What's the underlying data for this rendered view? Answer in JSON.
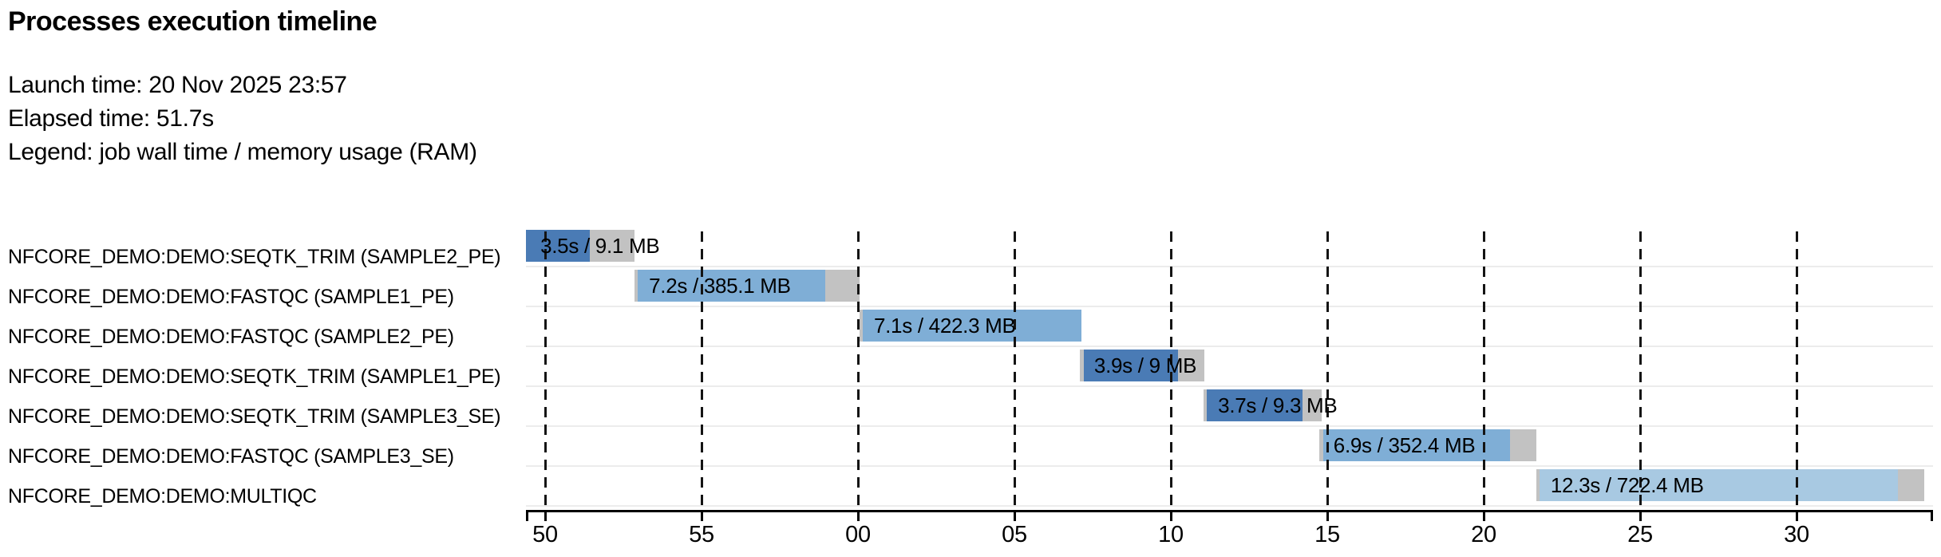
{
  "header": {
    "title": "Processes execution timeline",
    "launch_line": "Launch time: 20 Nov 2025 23:57",
    "elapsed_line": "Elapsed time: 51.7s",
    "legend_line": "Legend: job wall time / memory usage (RAM)"
  },
  "chart_data": {
    "type": "gantt",
    "title": "Processes execution timeline",
    "launch_time": "20 Nov 2025 23:57",
    "elapsed_time": "51.7s",
    "legend": "job wall time / memory usage (RAM)",
    "x_axis": {
      "unit": "wall-clock seconds (crossing a minute boundary, ticks every 5 s)",
      "domain_t": [
        -0.6,
        44.35
      ],
      "grid": "dashed-vertical",
      "ticks": [
        {
          "label": "50",
          "t": 0
        },
        {
          "label": "55",
          "t": 5
        },
        {
          "label": "00",
          "t": 10
        },
        {
          "label": "05",
          "t": 15
        },
        {
          "label": "10",
          "t": 20
        },
        {
          "label": "15",
          "t": 25
        },
        {
          "label": "20",
          "t": 30
        },
        {
          "label": "25",
          "t": 35
        },
        {
          "label": "30",
          "t": 40
        }
      ]
    },
    "colors": {
      "SEQTK_TRIM": "#4A7BB5",
      "FASTQC": "#7FAED6",
      "MULTIQC": "#A8C9E2",
      "overhead_gray": "#C2C2C2"
    },
    "tasks": [
      {
        "process": "NFCORE_DEMO:DEMO:SEQTK_TRIM (SAMPLE2_PE)",
        "bar_label": "3.5s / 9.1 MB",
        "wall_time": "3.5s",
        "memory": "9.1 MB",
        "color_key": "SEQTK_TRIM",
        "t_submit": -0.61,
        "t_run_start": -0.61,
        "t_run_end": 1.43,
        "t_complete": 2.86
      },
      {
        "process": "NFCORE_DEMO:DEMO:FASTQC (SAMPLE1_PE)",
        "bar_label": "7.2s / 385.1 MB",
        "wall_time": "7.2s",
        "memory": "385.1 MB",
        "color_key": "FASTQC",
        "t_submit": 2.86,
        "t_run_start": 2.96,
        "t_run_end": 8.95,
        "t_complete": 10.05
      },
      {
        "process": "NFCORE_DEMO:DEMO:FASTQC (SAMPLE2_PE)",
        "bar_label": "7.1s / 422.3 MB",
        "wall_time": "7.1s",
        "memory": "422.3 MB",
        "color_key": "FASTQC",
        "t_submit": 10.05,
        "t_run_start": 10.15,
        "t_run_end": 17.14,
        "t_complete": 17.14
      },
      {
        "process": "NFCORE_DEMO:DEMO:SEQTK_TRIM (SAMPLE1_PE)",
        "bar_label": "3.9s / 9 MB",
        "wall_time": "3.9s",
        "memory": "9 MB",
        "color_key": "SEQTK_TRIM",
        "t_submit": 17.09,
        "t_run_start": 17.22,
        "t_run_end": 20.23,
        "t_complete": 21.07
      },
      {
        "process": "NFCORE_DEMO:DEMO:SEQTK_TRIM (SAMPLE3_SE)",
        "bar_label": "3.7s / 9.3 MB",
        "wall_time": "3.7s",
        "memory": "9.3 MB",
        "color_key": "SEQTK_TRIM",
        "t_submit": 21.05,
        "t_run_start": 21.15,
        "t_run_end": 24.21,
        "t_complete": 24.82
      },
      {
        "process": "NFCORE_DEMO:DEMO:FASTQC (SAMPLE3_SE)",
        "bar_label": "6.9s / 352.4 MB",
        "wall_time": "6.9s",
        "memory": "352.4 MB",
        "color_key": "FASTQC",
        "t_submit": 24.74,
        "t_run_start": 24.87,
        "t_run_end": 30.84,
        "t_complete": 31.68
      },
      {
        "process": "NFCORE_DEMO:DEMO:MULTIQC",
        "bar_label": "12.3s / 722.4 MB",
        "wall_time": "12.3s",
        "memory": "722.4 MB",
        "color_key": "MULTIQC",
        "t_submit": 31.68,
        "t_run_start": 31.79,
        "t_run_end": 43.24,
        "t_complete": 44.08
      }
    ]
  }
}
